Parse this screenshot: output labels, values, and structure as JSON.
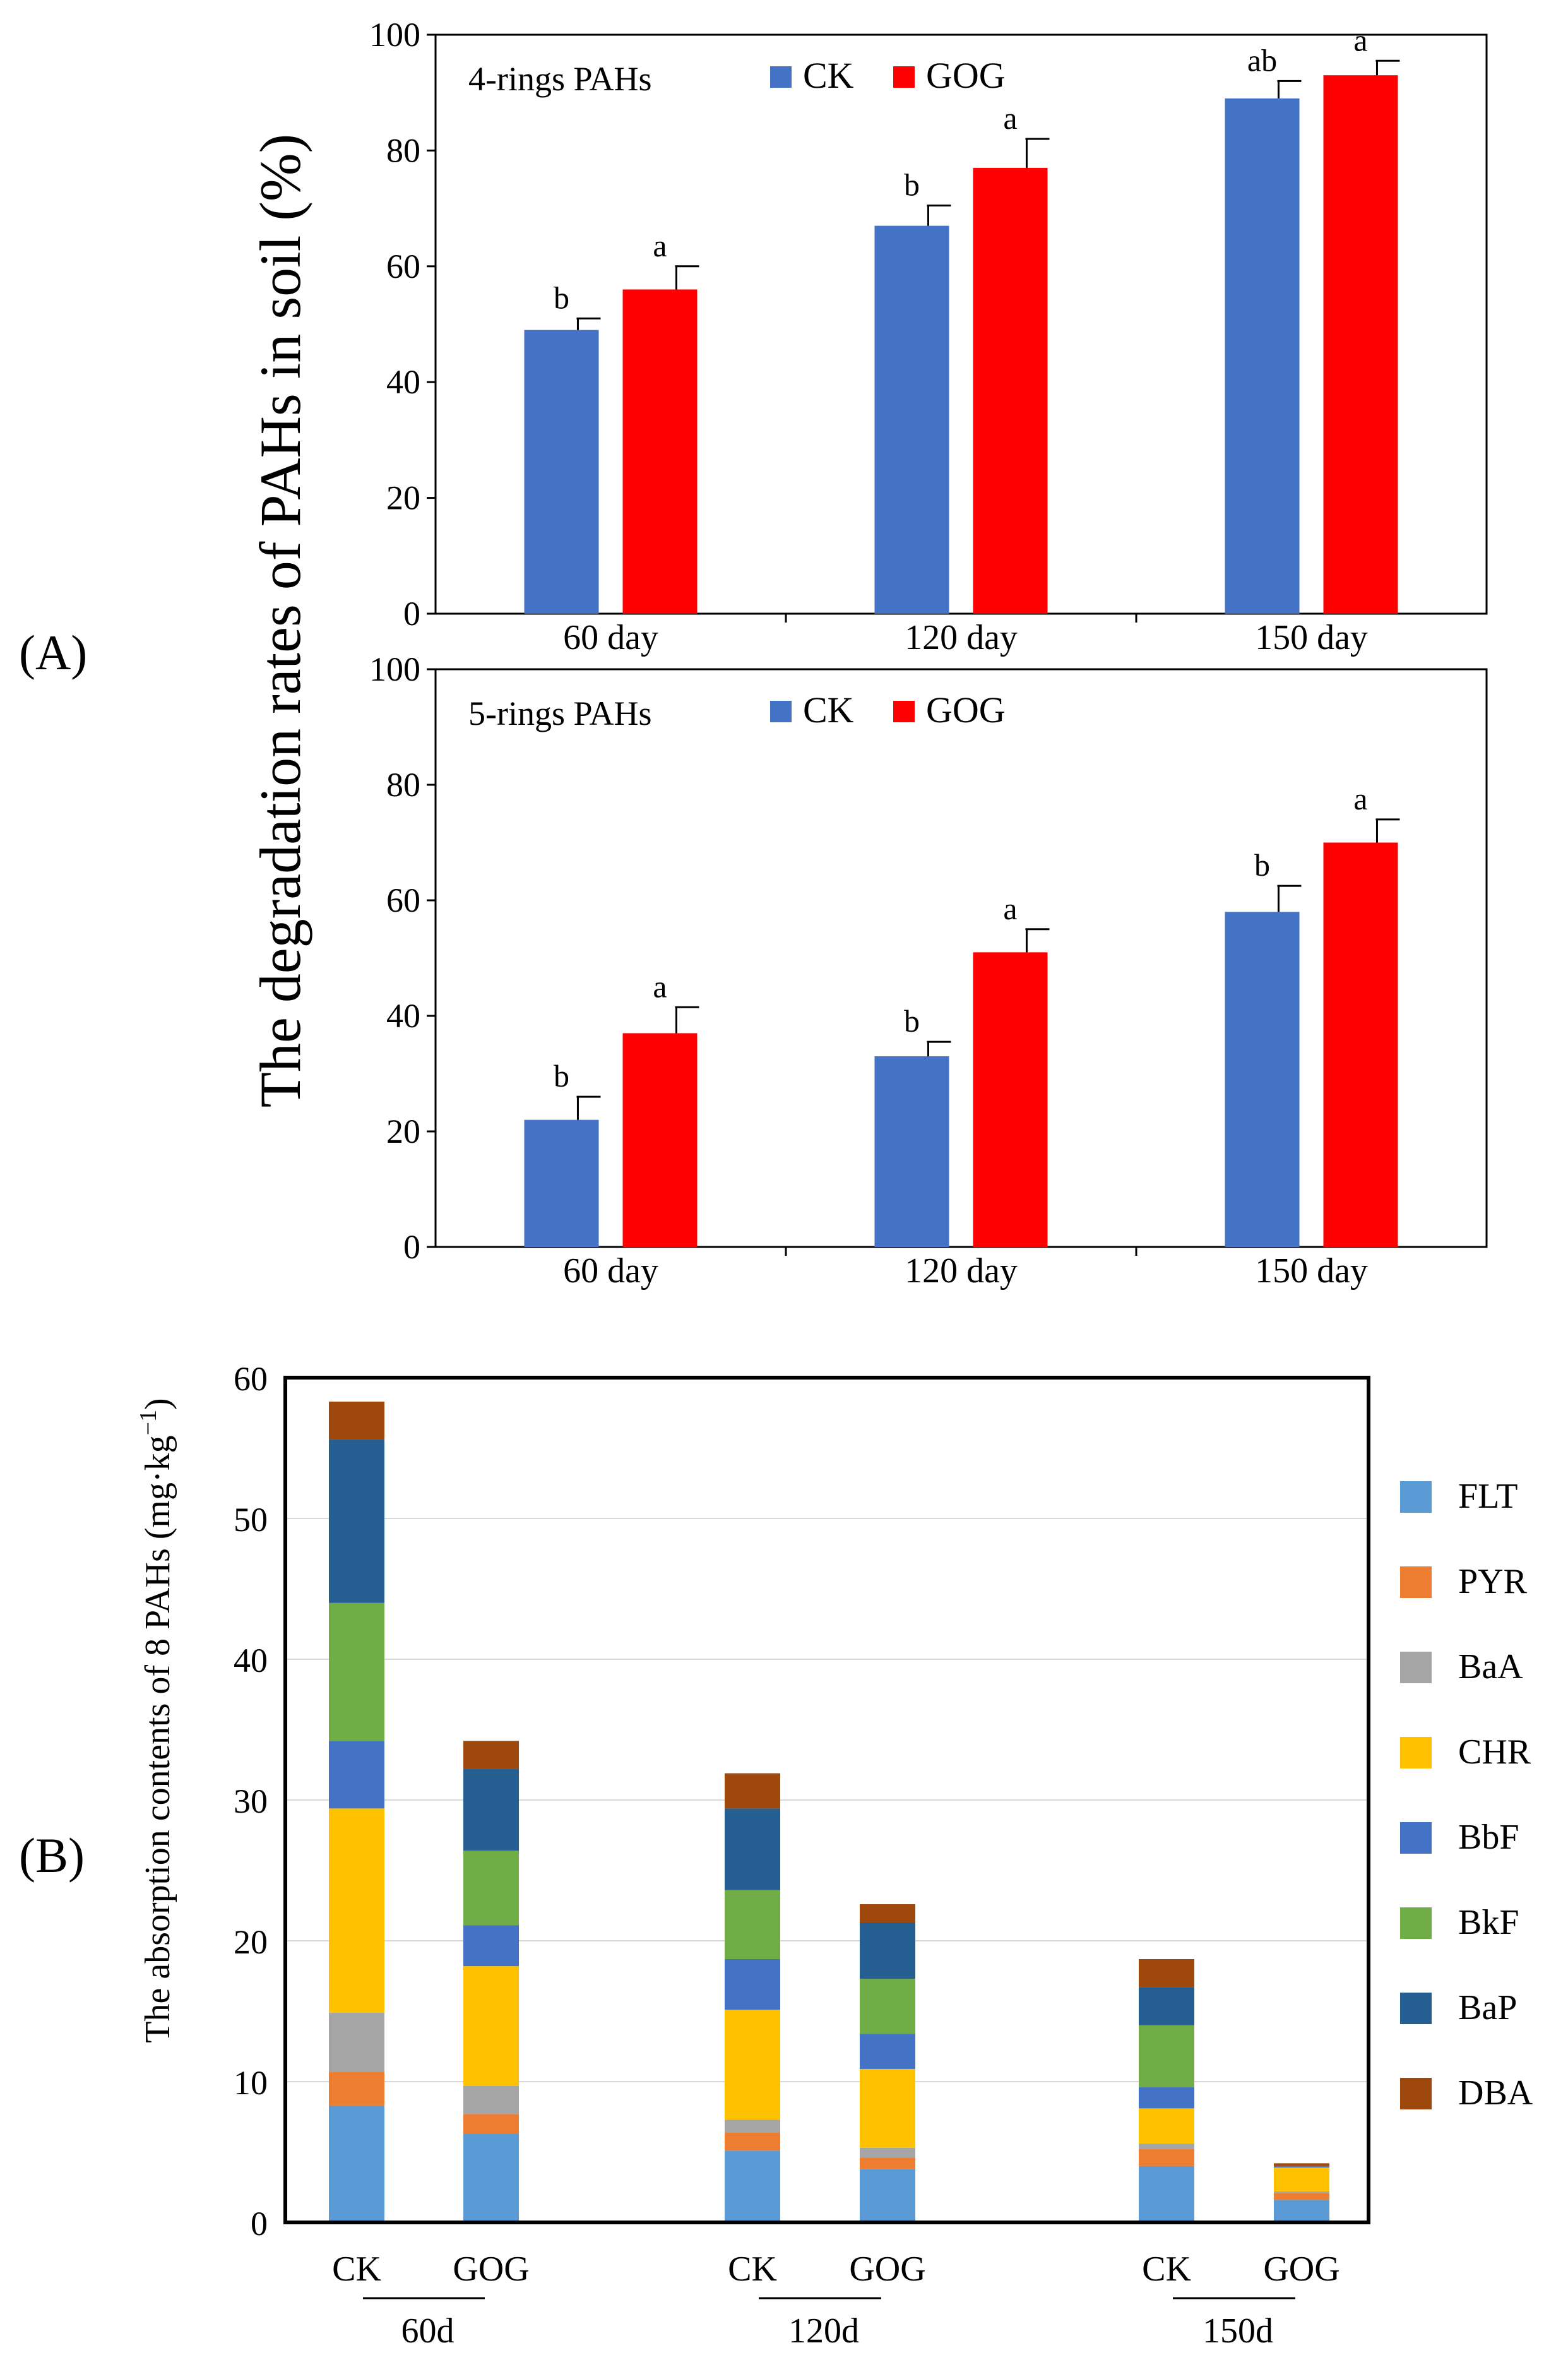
{
  "panel_labels": [
    "(A)",
    "(B)"
  ],
  "legend_colors": {
    "CK": "#4472C4",
    "GOG": "#FF0000"
  },
  "y_title_A": "The degradation rates of PAHs in soil (%)",
  "y_title_B_main": "The absorption contents of 8 PAHs (mg·kg",
  "y_title_B_sup": "−1",
  "y_title_B_end": ")",
  "chart_data": [
    {
      "type": "bar",
      "title": "4-rings  PAHs",
      "categories": [
        "60 day",
        "120 day",
        "150 day"
      ],
      "series": [
        {
          "name": "CK",
          "color": "#4472C4",
          "values": [
            49,
            67,
            89
          ],
          "errors": [
            2,
            3.5,
            3
          ],
          "letters": [
            "b",
            "b",
            "ab"
          ]
        },
        {
          "name": "GOG",
          "color": "#FF0000",
          "values": [
            56,
            77,
            93
          ],
          "errors": [
            4,
            5,
            2.5
          ],
          "letters": [
            "a",
            "a",
            "a"
          ]
        }
      ],
      "ylim": [
        0,
        100
      ],
      "yticks": [
        0,
        20,
        40,
        60,
        80,
        100
      ],
      "ylabel": "The degradation rates of PAHs in soil (%)",
      "xlabel": ""
    },
    {
      "type": "bar",
      "title": "5-rings  PAHs",
      "categories": [
        "60 day",
        "120 day",
        "150 day"
      ],
      "series": [
        {
          "name": "CK",
          "color": "#4472C4",
          "values": [
            22,
            33,
            58
          ],
          "errors": [
            4,
            2.5,
            4.5
          ],
          "letters": [
            "b",
            "b",
            "b"
          ]
        },
        {
          "name": "GOG",
          "color": "#FF0000",
          "values": [
            37,
            51,
            70
          ],
          "errors": [
            4.5,
            4,
            4
          ],
          "letters": [
            "a",
            "a",
            "a"
          ]
        }
      ],
      "ylim": [
        0,
        100
      ],
      "yticks": [
        0,
        20,
        40,
        60,
        80,
        100
      ],
      "ylabel": "The degradation rates of PAHs in soil (%)",
      "xlabel": ""
    },
    {
      "type": "bar",
      "stacked": true,
      "title": "",
      "categories": [
        "CK",
        "GOG",
        "CK",
        "GOG",
        "CK",
        "GOG"
      ],
      "groups": [
        "60d",
        "120d",
        "150d"
      ],
      "ylim": [
        0,
        60
      ],
      "yticks": [
        0,
        10,
        20,
        30,
        40,
        50,
        60
      ],
      "ylabel": "The absorption contents of 8 PAHs (mg·kg−1)",
      "xlabel": "",
      "series": [
        {
          "name": "FLT",
          "color": "#5B9BD5",
          "values": [
            8.3,
            6.3,
            5.1,
            3.8,
            4.0,
            1.6
          ]
        },
        {
          "name": "PYR",
          "color": "#ED7D31",
          "values": [
            2.4,
            1.4,
            1.3,
            0.8,
            1.2,
            0.5
          ]
        },
        {
          "name": "BaA",
          "color": "#A5A5A5",
          "values": [
            4.2,
            2.0,
            0.9,
            0.7,
            0.4,
            0.1
          ]
        },
        {
          "name": "CHR",
          "color": "#FFC000",
          "values": [
            14.5,
            8.5,
            7.8,
            5.6,
            2.5,
            1.7
          ]
        },
        {
          "name": "BbF",
          "color": "#4472C4",
          "values": [
            4.8,
            2.9,
            3.6,
            2.5,
            1.5,
            0.1
          ]
        },
        {
          "name": "BkF",
          "color": "#70AD47",
          "values": [
            9.8,
            5.3,
            4.9,
            3.9,
            4.4,
            0.0
          ]
        },
        {
          "name": "BaP",
          "color": "#255E91",
          "values": [
            11.6,
            5.8,
            5.8,
            4.0,
            2.7,
            0.0
          ]
        },
        {
          "name": "DBA",
          "color": "#9E480E",
          "values": [
            2.7,
            2.0,
            2.5,
            1.3,
            2.0,
            0.2
          ]
        }
      ]
    }
  ]
}
